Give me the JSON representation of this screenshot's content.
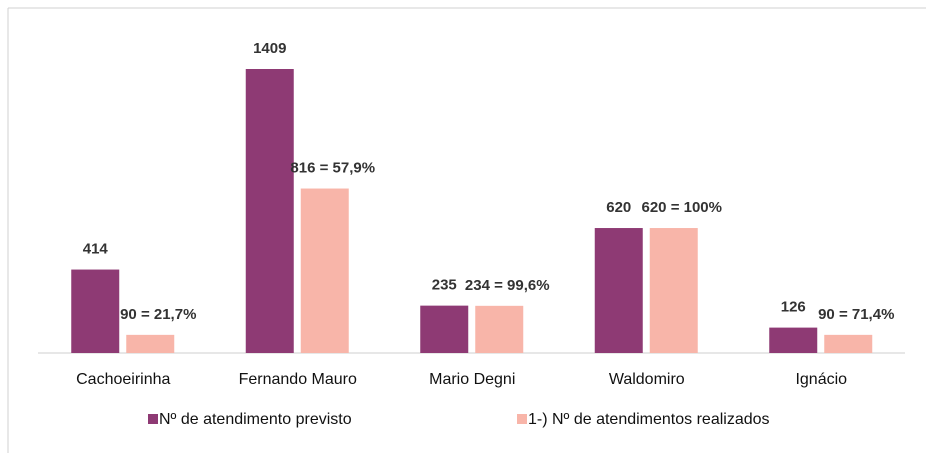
{
  "chart_data": {
    "type": "bar",
    "categories": [
      "Cachoeirinha",
      "Fernando Mauro",
      "Mario Degni",
      "Waldomiro",
      "Ignácio"
    ],
    "series": [
      {
        "name": "Nº de atendimento previsto",
        "color": "#8e3a74",
        "values": [
          414,
          1409,
          235,
          620,
          126
        ]
      },
      {
        "name": "1-) Nº de atendimentos realizados",
        "color": "#f8b5a9",
        "values": [
          90,
          816,
          234,
          620,
          90
        ],
        "value_labels": [
          "90 = 21,7%",
          "816 = 57,9%",
          "234 = 99,6%",
          "620 = 100%",
          "90 = 71,4%"
        ]
      }
    ]
  }
}
